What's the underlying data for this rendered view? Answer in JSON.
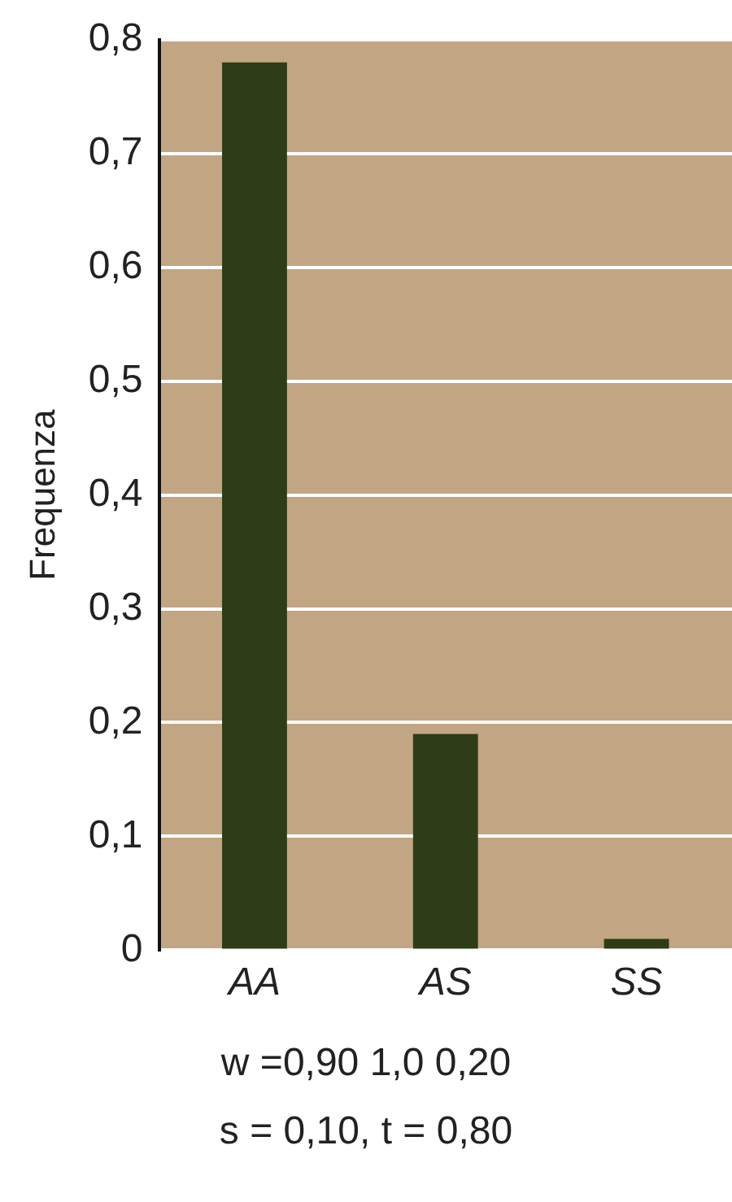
{
  "chart_data": {
    "type": "bar",
    "ylabel": "Frequenza",
    "categories": [
      "AA",
      "AS",
      "SS"
    ],
    "values": [
      0.78,
      0.19,
      0.01
    ],
    "color": "#2e3d17",
    "ylim": [
      0,
      0.8
    ],
    "yticks": [
      0,
      {
        "value": 0.1,
        "label": "0,1"
      },
      {
        "value": 0.2,
        "label": "0,2"
      },
      {
        "value": 0.3,
        "label": "0,3"
      },
      {
        "value": 0.4,
        "label": "0,4"
      },
      {
        "value": 0.5,
        "label": "0,5"
      },
      {
        "value": 0.6,
        "label": "0,6"
      },
      {
        "value": 0.7,
        "label": "0,7"
      },
      {
        "value": 0.8,
        "label": "0,8"
      }
    ],
    "grid": "y",
    "annotations": [
      "w =0,90  1,0  0,20",
      "s = 0,10, t = 0,80"
    ]
  }
}
